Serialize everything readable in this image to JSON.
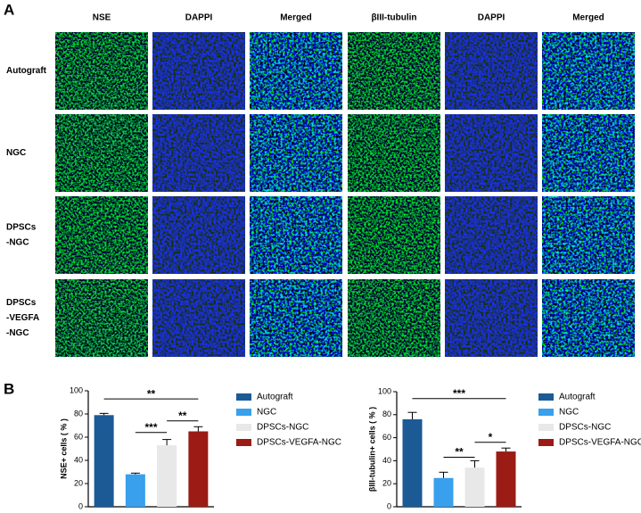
{
  "panel_labels": [
    "A",
    "B"
  ],
  "micrograph_grid": {
    "columns": [
      "NSE",
      "DAPPI",
      "Merged",
      "βIII-tubulin",
      "DAPPI",
      "Merged"
    ],
    "rows": [
      [
        "Autograft"
      ],
      [
        "NGC"
      ],
      [
        "DPSCs",
        "-NGC"
      ],
      [
        "DPSCs",
        "-VEGFA",
        "-NGC"
      ]
    ]
  },
  "chart_data": [
    {
      "type": "bar",
      "ylabel": "NSE+ cells ( % )",
      "ylim": [
        0,
        100
      ],
      "yticks": [
        0,
        20,
        40,
        60,
        80,
        100
      ],
      "series": [
        {
          "name": "Autograft",
          "color": "#1c5a95",
          "values": [
            79
          ],
          "errors": [
            1.5
          ]
        },
        {
          "name": "NGC",
          "color": "#38a0ec",
          "values": [
            28
          ],
          "errors": [
            1
          ]
        },
        {
          "name": "DPSCs-NGC",
          "color": "#e8e8e8",
          "values": [
            53
          ],
          "errors": [
            5
          ]
        },
        {
          "name": "DPSCs-VEGFA-NGC",
          "color": "#9b1b15",
          "values": [
            65
          ],
          "errors": [
            4
          ]
        }
      ],
      "significance": [
        {
          "label": "**",
          "y": 93,
          "between": [
            0,
            3
          ]
        },
        {
          "label": "***",
          "y": 64,
          "between": [
            1,
            2
          ]
        },
        {
          "label": "**",
          "y": 74,
          "between": [
            2,
            3
          ]
        }
      ]
    },
    {
      "type": "bar",
      "ylabel": "βIII-tubulin+ cells ( % )",
      "ylim": [
        0,
        100
      ],
      "yticks": [
        0,
        20,
        40,
        60,
        80,
        100
      ],
      "series": [
        {
          "name": "Autograft",
          "color": "#1c5a95",
          "values": [
            76
          ],
          "errors": [
            6
          ]
        },
        {
          "name": "NGC",
          "color": "#38a0ec",
          "values": [
            25
          ],
          "errors": [
            5
          ]
        },
        {
          "name": "DPSCs-NGC",
          "color": "#e8e8e8",
          "values": [
            34
          ],
          "errors": [
            6
          ]
        },
        {
          "name": "DPSCs-VEGFA-NGC",
          "color": "#9b1b15",
          "values": [
            48
          ],
          "errors": [
            3
          ]
        }
      ],
      "significance": [
        {
          "label": "***",
          "y": 94,
          "between": [
            0,
            3
          ]
        },
        {
          "label": "**",
          "y": 43,
          "between": [
            1,
            2
          ]
        },
        {
          "label": "*",
          "y": 56,
          "between": [
            2,
            3
          ]
        }
      ]
    }
  ]
}
